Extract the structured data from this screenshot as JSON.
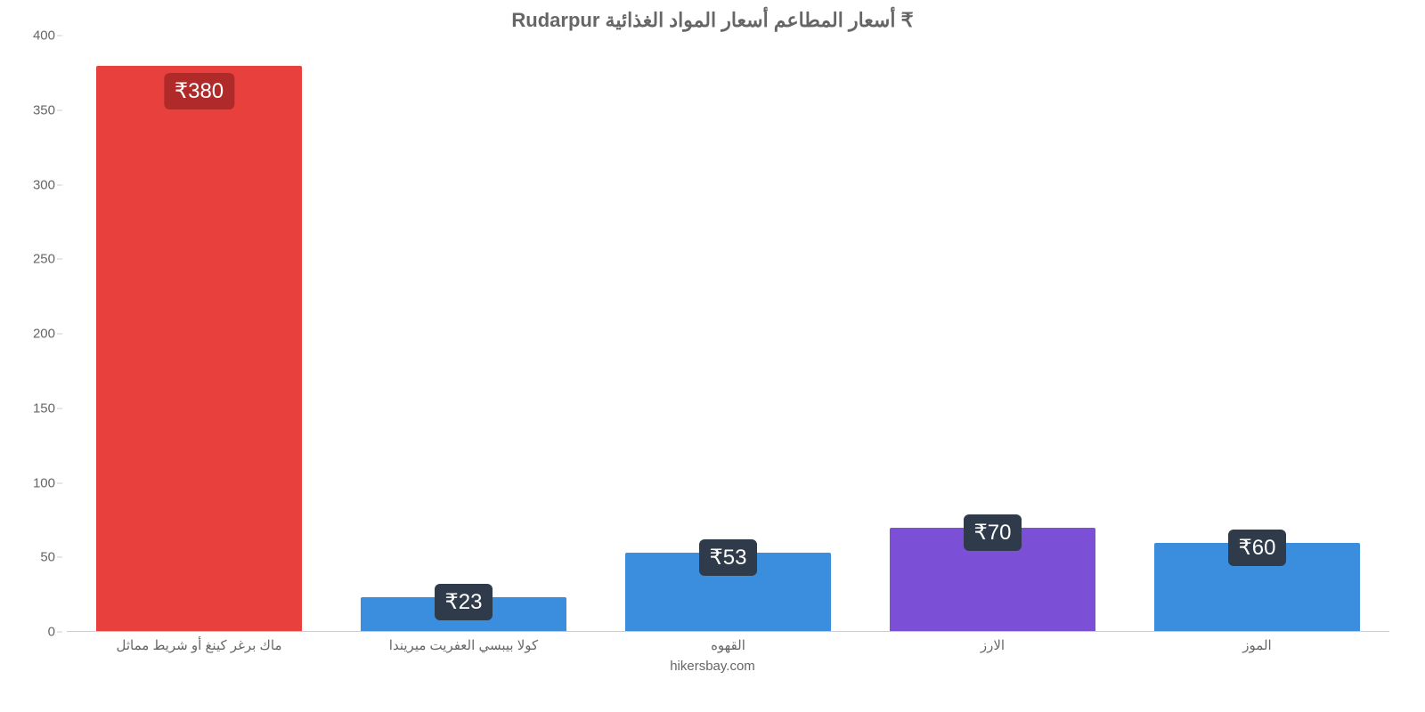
{
  "chart": {
    "type": "bar",
    "title": "₹ أسعار المطاعم أسعار المواد الغذائية Rudarpur",
    "title_color": "#666666",
    "title_fontsize": 22,
    "background_color": "#ffffff",
    "grid_color": "#cccccc",
    "label_color": "#666666",
    "label_fontsize": 15,
    "ylim": [
      0,
      400
    ],
    "ytick_step": 50,
    "yticks": [
      0,
      50,
      100,
      150,
      200,
      250,
      300,
      350,
      400
    ],
    "bar_width_pct": 78,
    "value_label_bg": "#2f3b4a",
    "value_label_bg_red": "#b02a2a",
    "value_label_color": "#ffffff",
    "value_label_fontsize": 24,
    "categories": [
      "ماك برغر كينغ أو شريط مماثل",
      "كولا بيبسي العفريت ميريندا",
      "القهوه",
      "الارز",
      "الموز"
    ],
    "values": [
      380,
      23,
      53,
      70,
      60
    ],
    "value_labels": [
      "₹380",
      "₹23",
      "₹53",
      "₹70",
      "₹60"
    ],
    "bar_colors": [
      "#e8403c",
      "#3b8ede",
      "#3b8ede",
      "#7b4fd6",
      "#3b8ede"
    ],
    "label_positions": [
      "inside",
      "above",
      "above",
      "above",
      "above"
    ],
    "credit": "hikersbay.com"
  }
}
